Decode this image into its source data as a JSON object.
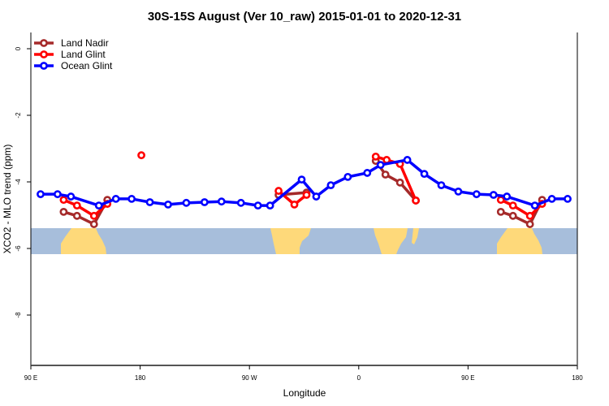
{
  "chart_data": {
    "type": "line",
    "title": "30S-15S August (Ver 10_raw)   2015-01-01 to 2020-12-31",
    "xlabel": "Longitude",
    "ylabel": "XCO2 - MLO trend (ppm)",
    "xlim": [
      90,
      540
    ],
    "ylim": [
      -9.5,
      0.5
    ],
    "x_note": "longitude axis runs continuously from 90E eastward through 180 to 180 again (450 degrees)",
    "xticks": [
      {
        "value": 90,
        "label": "90 E"
      },
      {
        "value": 180,
        "label": "180"
      },
      {
        "value": 270,
        "label": "90 W"
      },
      {
        "value": 360,
        "label": "0"
      },
      {
        "value": 450,
        "label": "90 E"
      },
      {
        "value": 540,
        "label": "180"
      }
    ],
    "yticks": [
      {
        "value": 0,
        "label": "0"
      },
      {
        "value": -2,
        "label": "-2"
      },
      {
        "value": -4,
        "label": "-4"
      },
      {
        "value": -6,
        "label": "-6"
      },
      {
        "value": -8,
        "label": "-8"
      }
    ],
    "legend_position": "top-left",
    "series": [
      {
        "name": "Land Nadir",
        "color": "#a52a2a",
        "segments": [
          {
            "x": [
              117,
              128,
              142,
              153
            ],
            "y": [
              -4.9,
              -5.02,
              -5.27,
              -4.54
            ]
          },
          {
            "x": [
              294,
              317
            ],
            "y": [
              -4.39,
              -4.32
            ]
          },
          {
            "x": [
              374,
              382,
              394,
              407
            ],
            "y": [
              -3.37,
              -3.78,
              -4.02,
              -4.56
            ]
          },
          {
            "x": [
              477,
              487,
              501,
              511
            ],
            "y": [
              -4.9,
              -5.02,
              -5.27,
              -4.54
            ]
          }
        ]
      },
      {
        "name": "Land Glint",
        "color": "#ff0000",
        "segments": [
          {
            "x": [
              117,
              128,
              142,
              153
            ],
            "y": [
              -4.54,
              -4.71,
              -5.02,
              -4.66
            ]
          },
          {
            "x": [
              181
            ],
            "y": [
              -3.2
            ]
          },
          {
            "x": [
              294,
              307,
              317
            ],
            "y": [
              -4.27,
              -4.68,
              -4.39
            ]
          },
          {
            "x": [
              374,
              383,
              394,
              407
            ],
            "y": [
              -3.24,
              -3.34,
              -3.46,
              -4.56
            ]
          },
          {
            "x": [
              477,
              487,
              501,
              511
            ],
            "y": [
              -4.54,
              -4.71,
              -5.02,
              -4.66
            ]
          }
        ]
      },
      {
        "name": "Ocean Glint",
        "color": "#0000ff",
        "segments": [
          {
            "x": [
              98,
              112,
              123,
              146,
              160,
              173,
              188,
              203,
              218,
              233,
              247,
              263,
              277,
              287,
              313,
              325,
              337,
              351,
              367,
              378,
              400,
              414,
              428,
              442,
              457,
              471,
              482,
              505,
              519,
              532
            ],
            "y": [
              -4.37,
              -4.37,
              -4.44,
              -4.71,
              -4.51,
              -4.51,
              -4.61,
              -4.68,
              -4.63,
              -4.61,
              -4.59,
              -4.63,
              -4.71,
              -4.71,
              -3.93,
              -4.44,
              -4.1,
              -3.85,
              -3.73,
              -3.49,
              -3.34,
              -3.76,
              -4.1,
              -4.29,
              -4.37,
              -4.39,
              -4.44,
              -4.71,
              -4.51,
              -4.51
            ]
          }
        ]
      }
    ],
    "map_colors": {
      "ocean": "#a7bedb",
      "land": "#fed97a"
    }
  }
}
